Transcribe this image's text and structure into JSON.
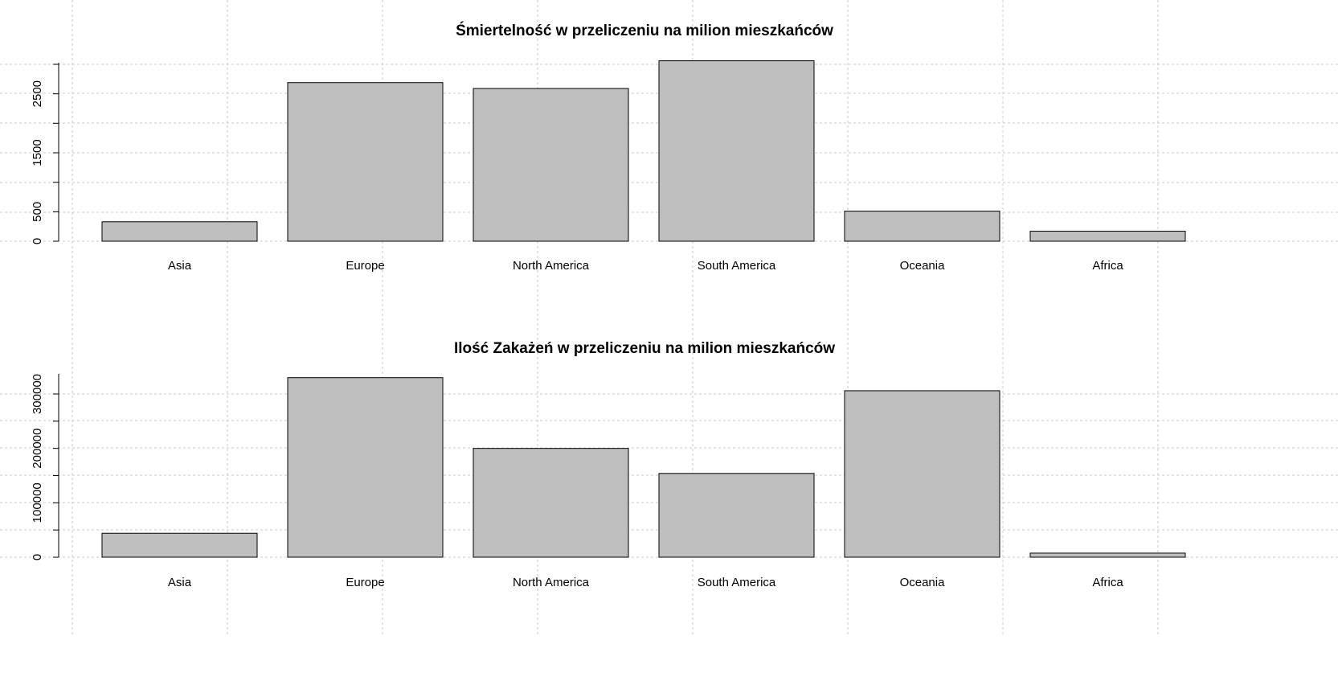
{
  "style": {
    "bar_fill": "#bebebe",
    "bar_stroke": "#000000",
    "grid_color": "#c8c8c8",
    "background": "#ffffff"
  },
  "chart_data": [
    {
      "type": "bar",
      "title": "Śmiertelność w przeliczeniu na milion mieszkańców",
      "xlabel": "",
      "ylabel": "",
      "categories": [
        "Asia",
        "Europe",
        "North America",
        "South America",
        "Oceania",
        "Africa"
      ],
      "values": [
        330,
        2690,
        2590,
        3060,
        510,
        170
      ],
      "ylim": [
        0,
        3000
      ],
      "y_tick_labels": [
        "0",
        "500",
        "1500",
        "2500"
      ],
      "y_tick_values": [
        0,
        500,
        1500,
        2500
      ],
      "y_minor_tick_values": [
        1000,
        2000,
        3000
      ],
      "grid": true
    },
    {
      "type": "bar",
      "title": "Ilość Zakażeń w przeliczeniu na milion mieszkańców",
      "xlabel": "",
      "ylabel": "",
      "categories": [
        "Asia",
        "Europe",
        "North America",
        "South America",
        "Oceania",
        "Africa"
      ],
      "values": [
        44000,
        330000,
        200000,
        154000,
        306000,
        7500
      ],
      "ylim": [
        0,
        330000
      ],
      "y_tick_labels": [
        "0",
        "100000",
        "200000",
        "300000"
      ],
      "y_tick_values": [
        0,
        100000,
        200000,
        300000
      ],
      "y_minor_tick_values": [
        50000,
        150000,
        250000
      ],
      "grid": true
    }
  ]
}
